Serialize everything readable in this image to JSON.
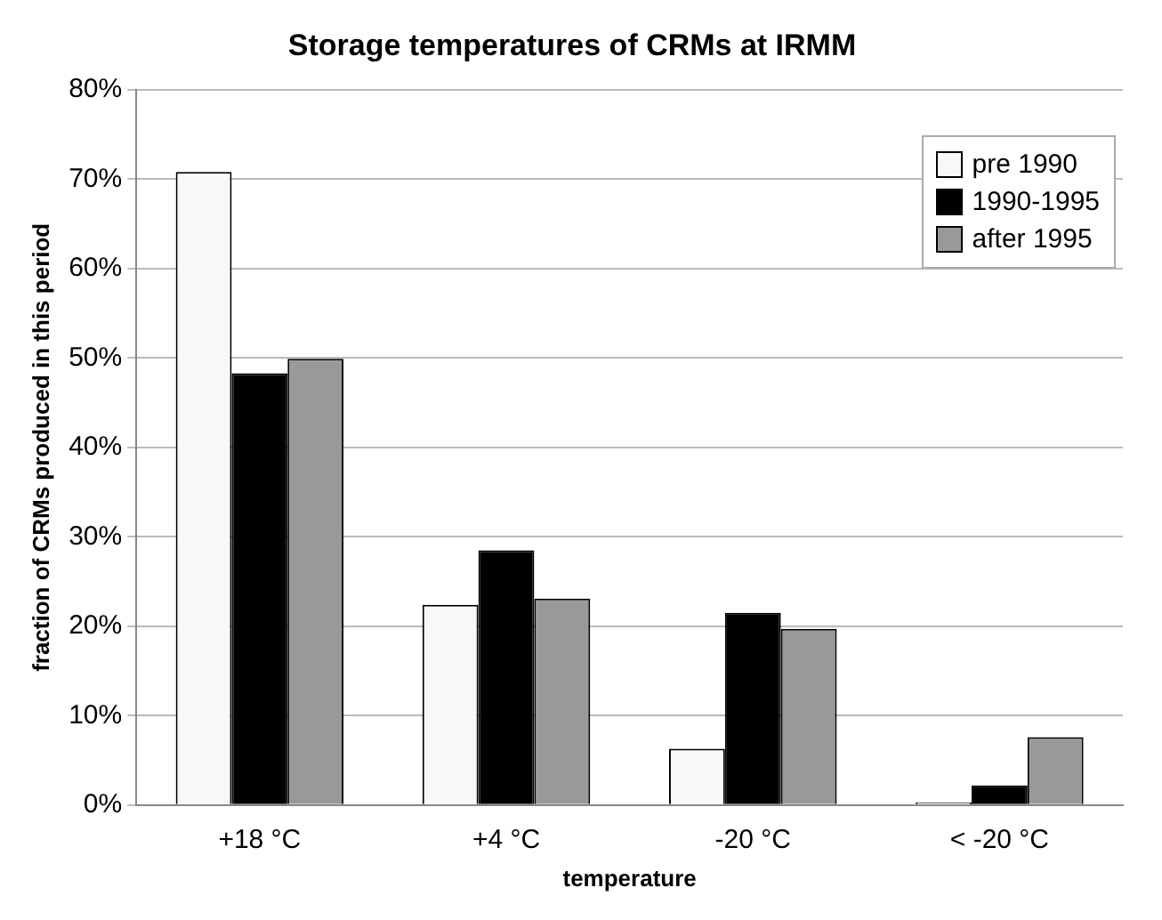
{
  "chart_data": {
    "type": "bar",
    "title": "Storage temperatures of CRMs at IRMM",
    "xlabel": "temperature",
    "ylabel": "fraction of CRMs produced in this period",
    "categories": [
      "+18 °C",
      "+4 °C",
      "-20 °C",
      "< -20 °C"
    ],
    "series": [
      {
        "name": "pre 1990",
        "color": "#f8f8f8",
        "values": [
          70.8,
          22.4,
          6.3,
          0.3
        ]
      },
      {
        "name": "1990-1995",
        "color": "#000000",
        "values": [
          48.3,
          28.5,
          21.5,
          2.2
        ]
      },
      {
        "name": "after 1995",
        "color": "#999999",
        "values": [
          49.9,
          23.1,
          19.7,
          7.6
        ]
      }
    ],
    "ylim": [
      0,
      80
    ],
    "yticks": [
      {
        "value": 0,
        "label": "0%"
      },
      {
        "value": 10,
        "label": "10%"
      },
      {
        "value": 20,
        "label": "20%"
      },
      {
        "value": 30,
        "label": "30%"
      },
      {
        "value": 40,
        "label": "40%"
      },
      {
        "value": 50,
        "label": "50%"
      },
      {
        "value": 60,
        "label": "60%"
      },
      {
        "value": 70,
        "label": "70%"
      },
      {
        "value": 80,
        "label": "80%"
      }
    ],
    "grid": "y",
    "legend": "top right"
  }
}
